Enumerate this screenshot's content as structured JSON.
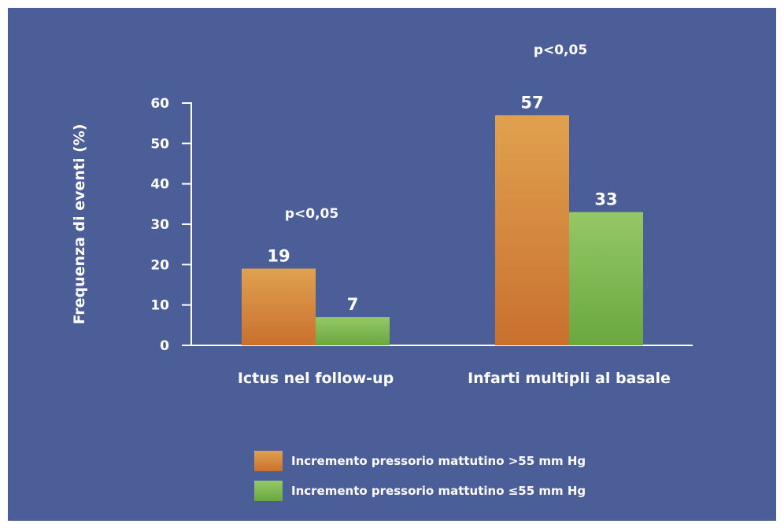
{
  "chart_data": {
    "type": "bar",
    "ylabel": "Frequenza di eventi (%)",
    "ylim": [
      0,
      60
    ],
    "yticks": [
      0,
      10,
      20,
      30,
      40,
      50,
      60
    ],
    "categories": [
      "Ictus nel follow-up",
      "Infarti multipli al basale"
    ],
    "series": [
      {
        "name": "Incremento pressorio mattutino >55 mm Hg",
        "values": [
          19,
          57
        ],
        "color": "#d9833e"
      },
      {
        "name": "Incremento pressorio mattutino ≤55 mm Hg",
        "values": [
          7,
          33
        ],
        "color": "#7fbf4f"
      }
    ],
    "annotations": [
      "p<0,05",
      "p<0,05"
    ],
    "legend_position": "bottom-center"
  }
}
